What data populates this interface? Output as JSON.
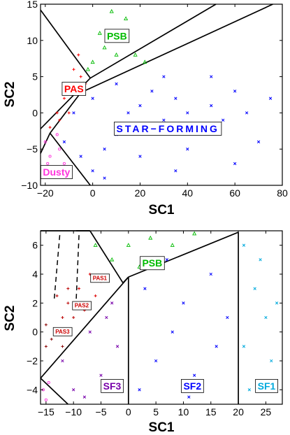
{
  "chart_data": [
    {
      "type": "scatter",
      "xlabel": "SC1",
      "ylabel": "SC2",
      "xlim": [
        -22,
        80
      ],
      "ylim": [
        -10,
        15
      ],
      "xticks": [
        "−20",
        "0",
        "20",
        "40",
        "60",
        "80"
      ],
      "yticks": [
        "−10",
        "−5",
        "0",
        "5",
        "10",
        "15"
      ],
      "series": [
        {
          "name": "STAR−FORMING",
          "color": "#0000ff",
          "marker": "x",
          "points": [
            [
              -12,
              -4
            ],
            [
              -5,
              -6
            ],
            [
              0,
              -8
            ],
            [
              5,
              -5
            ],
            [
              10,
              -3
            ],
            [
              15,
              0
            ],
            [
              20,
              1
            ],
            [
              25,
              3
            ],
            [
              30,
              -1
            ],
            [
              35,
              2
            ],
            [
              40,
              0
            ],
            [
              45,
              -2
            ],
            [
              50,
              1
            ],
            [
              55,
              -1
            ],
            [
              60,
              3
            ],
            [
              65,
              0
            ],
            [
              70,
              -4
            ],
            [
              75,
              2
            ],
            [
              20,
              -6
            ],
            [
              40,
              -5
            ],
            [
              60,
              -7
            ],
            [
              10,
              4
            ],
            [
              30,
              5
            ],
            [
              50,
              5
            ],
            [
              0,
              2
            ],
            [
              -8,
              0
            ],
            [
              5,
              -9
            ],
            [
              35,
              -8
            ]
          ]
        },
        {
          "name": "PSB",
          "color": "#00bb00",
          "marker": "^",
          "points": [
            [
              -4,
              4
            ],
            [
              0,
              7
            ],
            [
              5,
              9
            ],
            [
              10,
              8
            ],
            [
              14,
              13
            ],
            [
              3,
              11
            ],
            [
              18,
              8
            ],
            [
              22,
              7
            ],
            [
              8,
              14
            ],
            [
              -2,
              6
            ]
          ]
        },
        {
          "name": "PAS",
          "color": "#ff0000",
          "marker": "+",
          "points": [
            [
              -18,
              -2
            ],
            [
              -15,
              0
            ],
            [
              -12,
              2
            ],
            [
              -10,
              4
            ],
            [
              -8,
              6
            ],
            [
              -5,
              5
            ],
            [
              -6,
              8
            ],
            [
              -3,
              4
            ],
            [
              -14,
              -1
            ],
            [
              -10,
              0
            ]
          ]
        },
        {
          "name": "Dusty",
          "color": "#ff33dd",
          "marker": "o",
          "points": [
            [
              -20,
              -4
            ],
            [
              -18,
              -6
            ],
            [
              -16,
              -8
            ],
            [
              -14,
              -5
            ],
            [
              -12,
              -7
            ],
            [
              -19,
              -7
            ],
            [
              -15,
              -3
            ]
          ]
        }
      ],
      "boundaries": [
        {
          "from": [
            -22,
            14.2
          ],
          "to": [
            -1,
            4.8
          ]
        },
        {
          "from": [
            -22,
            -2.2
          ],
          "to": [
            -1,
            4.8
          ]
        },
        {
          "from": [
            -1,
            4.8
          ],
          "to": [
            52,
            15
          ]
        },
        {
          "from": [
            -5,
            2.8
          ],
          "to": [
            76,
            15
          ]
        },
        {
          "from": [
            -18,
            -2.8
          ],
          "to": [
            -5,
            2.8
          ]
        },
        {
          "from": [
            -22,
            -5.6
          ],
          "to": [
            -18,
            -2.8
          ]
        },
        {
          "from": [
            -18,
            -2.8
          ],
          "to": [
            -1,
            -10
          ]
        }
      ],
      "labels": [
        {
          "text": "PSB",
          "x": 6,
          "y": 10.5,
          "color": "#00bb00"
        },
        {
          "text": "PAS",
          "x": -12,
          "y": 3.2,
          "color": "#ff0000"
        },
        {
          "text": "STAR−FORMING",
          "x": 10,
          "y": -2.3,
          "color": "#0000ff"
        },
        {
          "text": "Dusty",
          "x": -21,
          "y": -8.3,
          "color": "#ff33dd"
        }
      ]
    },
    {
      "type": "scatter",
      "xlabel": "SC1",
      "ylabel": "SC2",
      "xlim": [
        -16,
        28
      ],
      "ylim": [
        -5,
        7
      ],
      "xticks": [
        "−15",
        "−10",
        "−5",
        "0",
        "5",
        "10",
        "15",
        "20",
        "25"
      ],
      "yticks": [
        "−4",
        "−2",
        "0",
        "2",
        "4",
        "6"
      ],
      "series": [
        {
          "name": "SF1",
          "color": "#00aadd",
          "marker": "x",
          "points": [
            [
              21,
              6
            ],
            [
              23,
              3
            ],
            [
              25,
              1
            ],
            [
              26,
              -2
            ],
            [
              22,
              -4
            ],
            [
              24,
              5
            ],
            [
              27,
              2
            ],
            [
              21,
              -1
            ]
          ]
        },
        {
          "name": "SF2",
          "color": "#0000ff",
          "marker": "x",
          "points": [
            [
              2,
              -4
            ],
            [
              5,
              -2
            ],
            [
              8,
              0
            ],
            [
              10,
              2
            ],
            [
              12,
              -3
            ],
            [
              15,
              4
            ],
            [
              18,
              1
            ],
            [
              3,
              3
            ],
            [
              7,
              5
            ],
            [
              16,
              -1
            ],
            [
              11,
              -4.5
            ]
          ]
        },
        {
          "name": "SF3",
          "color": "#7700aa",
          "marker": "x",
          "points": [
            [
              -12,
              -2
            ],
            [
              -10,
              -4
            ],
            [
              -7,
              0
            ],
            [
              -5,
              -3
            ],
            [
              -3,
              2
            ],
            [
              -2,
              -1
            ],
            [
              -8,
              -4.5
            ],
            [
              -4,
              1
            ]
          ]
        },
        {
          "name": "PSB",
          "color": "#00bb00",
          "marker": "^",
          "points": [
            [
              -6,
              6
            ],
            [
              -3,
              5
            ],
            [
              0,
              6
            ],
            [
              4,
              6.5
            ],
            [
              8,
              6
            ],
            [
              12,
              6.8
            ],
            [
              2,
              4.5
            ]
          ]
        },
        {
          "name": "PAS1",
          "color": "#dd0000",
          "marker": "+",
          "points": [
            [
              -9,
              3
            ],
            [
              -7,
              4
            ],
            [
              -5,
              3.5
            ],
            [
              -8,
              1.5
            ],
            [
              -6,
              2.5
            ]
          ]
        },
        {
          "name": "PAS2",
          "color": "#bb0000",
          "marker": "+",
          "points": [
            [
              -13,
              2.5
            ],
            [
              -11,
              2
            ],
            [
              -12,
              1
            ],
            [
              -10,
              1
            ],
            [
              -11,
              3
            ]
          ]
        },
        {
          "name": "PAS3",
          "color": "#880000",
          "marker": "+",
          "points": [
            [
              -15,
              0.5
            ],
            [
              -14,
              -0.5
            ],
            [
              -13,
              0
            ],
            [
              -15,
              -1
            ],
            [
              -12,
              -1
            ]
          ]
        },
        {
          "name": "",
          "color": "#ff33dd",
          "marker": "o",
          "points": [
            [
              -15.5,
              -4
            ],
            [
              -15,
              -4.7
            ],
            [
              -14.5,
              -3.5
            ]
          ]
        }
      ],
      "boundaries": [
        {
          "from": [
            -16,
            7
          ],
          "to": [
            -7,
            7
          ]
        },
        {
          "from": [
            -7,
            7
          ],
          "to": [
            -1,
            3.4
          ]
        },
        {
          "from": [
            -1,
            3.4
          ],
          "to": [
            0,
            3.8
          ]
        },
        {
          "from": [
            -7,
            7
          ],
          "to": [
            -9.5,
            7
          ]
        },
        {
          "from": [
            0,
            3.8
          ],
          "to": [
            20,
            6.9
          ]
        },
        {
          "from": [
            0,
            3.8
          ],
          "to": [
            0,
            -5
          ]
        },
        {
          "from": [
            20,
            6.9
          ],
          "to": [
            20,
            -5
          ]
        },
        {
          "from": [
            0,
            3.8
          ],
          "to": [
            -16,
            -3.2
          ]
        },
        {
          "from": [
            -16,
            -3.2
          ],
          "to": [
            -11,
            -5
          ]
        }
      ],
      "dashed": [
        {
          "from": [
            -12.5,
            6.7
          ],
          "to": [
            -13.5,
            2.3
          ]
        },
        {
          "from": [
            -9,
            6.7
          ],
          "to": [
            -9.5,
            2.3
          ]
        }
      ],
      "labels": [
        {
          "text": "PSB",
          "x": 2.5,
          "y": 4.7,
          "color": "#00bb00"
        },
        {
          "text": "PAS1",
          "x": -6.5,
          "y": 3.7,
          "color": "#cc0000",
          "small": true
        },
        {
          "text": "PAS2",
          "x": -9.8,
          "y": 1.8,
          "color": "#cc0000",
          "small": true
        },
        {
          "text": "PAS3",
          "x": -13.3,
          "y": 0.0,
          "color": "#cc0000",
          "small": true
        },
        {
          "text": "SF3",
          "x": -4.6,
          "y": -3.8,
          "color": "#7700aa"
        },
        {
          "text": "SF2",
          "x": 10,
          "y": -3.8,
          "color": "#0000ff"
        },
        {
          "text": "SF1",
          "x": 23.5,
          "y": -3.8,
          "color": "#00aadd"
        }
      ]
    }
  ]
}
